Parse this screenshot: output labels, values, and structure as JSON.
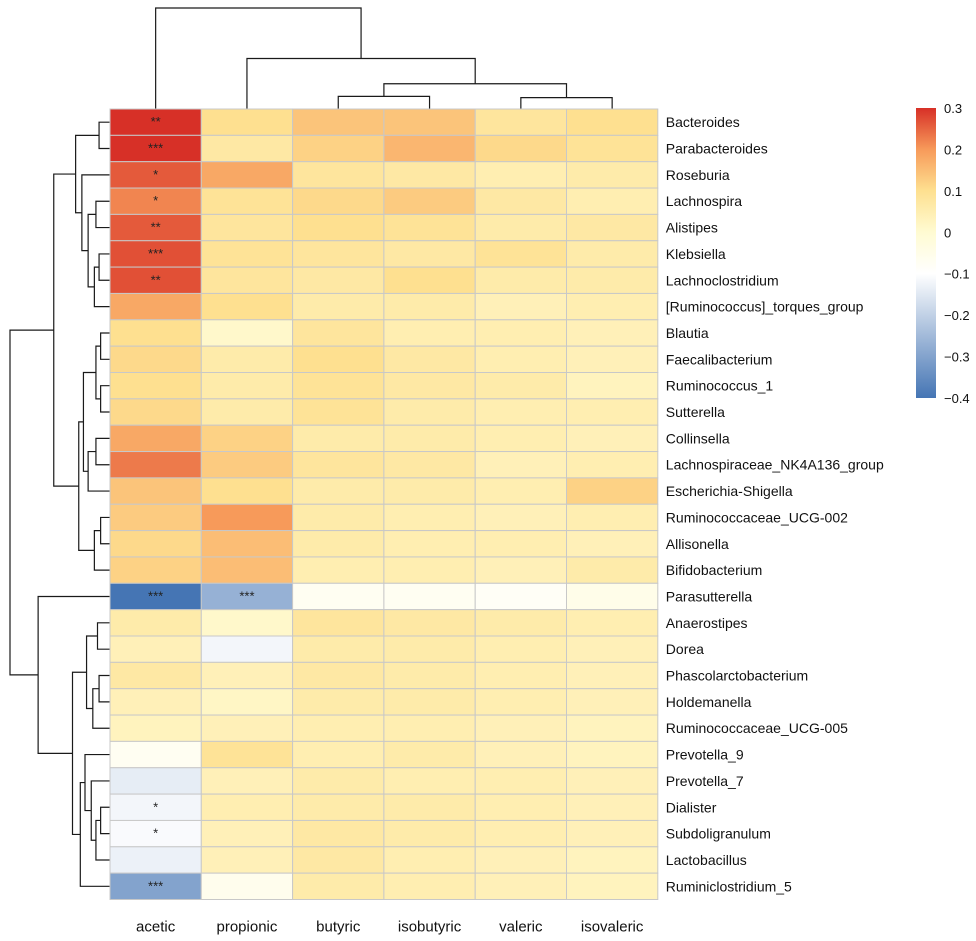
{
  "chart_data": {
    "type": "heatmap",
    "title": "",
    "columns": [
      "acetic",
      "propionic",
      "butyric",
      "isobutyric",
      "valeric",
      "isovaleric"
    ],
    "rows": [
      "Bacteroides",
      "Parabacteroides",
      "Roseburia",
      "Lachnospira",
      "Alistipes",
      "Klebsiella",
      "Lachnoclostridium",
      "[Ruminococcus]_torques_group",
      "Blautia",
      "Faecalibacterium",
      "Ruminococcus_1",
      "Sutterella",
      "Collinsella",
      "Lachnospiraceae_NK4A136_group",
      "Escherichia-Shigella",
      "Ruminococcaceae_UCG-002",
      "Allisonella",
      "Bifidobacterium",
      "Parasutterella",
      "Anaerostipes",
      "Dorea",
      "Phascolarctobacterium",
      "Holdemanella",
      "Ruminococcaceae_UCG-005",
      "Prevotella_9",
      "Prevotella_7",
      "Dialister",
      "Subdoligranulum",
      "Lactobacillus",
      "Ruminiclostridium_5"
    ],
    "values": [
      [
        0.3,
        0.1,
        0.14,
        0.14,
        0.08,
        0.1
      ],
      [
        0.32,
        0.07,
        0.12,
        0.16,
        0.11,
        0.09
      ],
      [
        0.26,
        0.18,
        0.08,
        0.07,
        0.05,
        0.06
      ],
      [
        0.22,
        0.09,
        0.11,
        0.13,
        0.07,
        0.05
      ],
      [
        0.26,
        0.08,
        0.1,
        0.09,
        0.06,
        0.07
      ],
      [
        0.27,
        0.09,
        0.08,
        0.07,
        0.09,
        0.06
      ],
      [
        0.27,
        0.08,
        0.07,
        0.1,
        0.06,
        0.06
      ],
      [
        0.18,
        0.1,
        0.06,
        0.06,
        0.04,
        0.05
      ],
      [
        0.1,
        0.01,
        0.08,
        0.05,
        0.05,
        0.04
      ],
      [
        0.11,
        0.06,
        0.1,
        0.07,
        0.05,
        0.04
      ],
      [
        0.1,
        0.06,
        0.09,
        0.07,
        0.06,
        0.03
      ],
      [
        0.11,
        0.06,
        0.09,
        0.06,
        0.05,
        0.05
      ],
      [
        0.18,
        0.12,
        0.06,
        0.06,
        0.05,
        0.04
      ],
      [
        0.23,
        0.13,
        0.08,
        0.07,
        0.04,
        0.05
      ],
      [
        0.14,
        0.1,
        0.06,
        0.06,
        0.05,
        0.12
      ],
      [
        0.13,
        0.2,
        0.06,
        0.05,
        0.04,
        0.05
      ],
      [
        0.11,
        0.15,
        0.06,
        0.05,
        0.05,
        0.04
      ],
      [
        0.12,
        0.15,
        0.05,
        0.05,
        0.04,
        0.06
      ],
      [
        -0.4,
        -0.27,
        -0.07,
        -0.07,
        -0.08,
        -0.05
      ],
      [
        0.06,
        0.01,
        0.08,
        0.07,
        0.06,
        0.05
      ],
      [
        0.04,
        -0.12,
        0.06,
        0.06,
        0.05,
        0.04
      ],
      [
        0.07,
        0.04,
        0.07,
        0.06,
        0.05,
        0.04
      ],
      [
        0.04,
        0.02,
        0.06,
        0.06,
        0.05,
        0.04
      ],
      [
        0.03,
        0.04,
        0.05,
        0.05,
        0.04,
        0.03
      ],
      [
        -0.07,
        0.09,
        0.05,
        0.06,
        0.04,
        0.03
      ],
      [
        -0.14,
        0.04,
        0.06,
        0.05,
        0.05,
        0.04
      ],
      [
        -0.12,
        0.05,
        0.06,
        0.06,
        0.05,
        0.04
      ],
      [
        -0.11,
        0.04,
        0.07,
        0.06,
        0.05,
        0.04
      ],
      [
        -0.13,
        0.04,
        0.07,
        0.05,
        0.04,
        0.03
      ],
      [
        -0.3,
        -0.06,
        0.06,
        0.05,
        0.04,
        0.03
      ]
    ],
    "significance": [
      [
        "**",
        "",
        "",
        "",
        "",
        ""
      ],
      [
        "***",
        "",
        "",
        "",
        "",
        ""
      ],
      [
        "*",
        "",
        "",
        "",
        "",
        ""
      ],
      [
        "*",
        "",
        "",
        "",
        "",
        ""
      ],
      [
        "**",
        "",
        "",
        "",
        "",
        ""
      ],
      [
        "***",
        "",
        "",
        "",
        "",
        ""
      ],
      [
        "**",
        "",
        "",
        "",
        "",
        ""
      ],
      [
        "",
        "",
        "",
        "",
        "",
        ""
      ],
      [
        "",
        "",
        "",
        "",
        "",
        ""
      ],
      [
        "",
        "",
        "",
        "",
        "",
        ""
      ],
      [
        "",
        "",
        "",
        "",
        "",
        ""
      ],
      [
        "",
        "",
        "",
        "",
        "",
        ""
      ],
      [
        "",
        "",
        "",
        "",
        "",
        ""
      ],
      [
        "",
        "",
        "",
        "",
        "",
        ""
      ],
      [
        "",
        "",
        "",
        "",
        "",
        ""
      ],
      [
        "",
        "",
        "",
        "",
        "",
        ""
      ],
      [
        "",
        "",
        "",
        "",
        "",
        ""
      ],
      [
        "",
        "",
        "",
        "",
        "",
        ""
      ],
      [
        "***",
        "***",
        "",
        "",
        "",
        ""
      ],
      [
        "",
        "",
        "",
        "",
        "",
        ""
      ],
      [
        "",
        "",
        "",
        "",
        "",
        ""
      ],
      [
        "",
        "",
        "",
        "",
        "",
        ""
      ],
      [
        "",
        "",
        "",
        "",
        "",
        ""
      ],
      [
        "",
        "",
        "",
        "",
        "",
        ""
      ],
      [
        "",
        "",
        "",
        "",
        "",
        ""
      ],
      [
        "",
        "",
        "",
        "",
        "",
        ""
      ],
      [
        "*",
        "",
        "",
        "",
        "",
        ""
      ],
      [
        "*",
        "",
        "",
        "",
        "",
        ""
      ],
      [
        "",
        "",
        "",
        "",
        "",
        ""
      ],
      [
        "***",
        "",
        "",
        "",
        "",
        ""
      ]
    ],
    "color_scale": {
      "range": [
        -0.4,
        0.3
      ],
      "stops": [
        {
          "value": -0.4,
          "color": "#4575b4"
        },
        {
          "value": -0.1,
          "color": "#ffffff"
        },
        {
          "value": 0.0,
          "color": "#fffbd2"
        },
        {
          "value": 0.1,
          "color": "#fee090"
        },
        {
          "value": 0.2,
          "color": "#f79a5a"
        },
        {
          "value": 0.3,
          "color": "#d73027"
        }
      ],
      "tick_labels": [
        "0.3",
        "0.2",
        "0.1",
        "0",
        "−0.1",
        "−0.2",
        "−0.3",
        "−0.4"
      ],
      "tick_values": [
        0.3,
        0.2,
        0.1,
        0,
        -0.1,
        -0.2,
        -0.3,
        -0.4
      ]
    },
    "column_dendrogram": [
      {
        "id": 6,
        "left": 2,
        "right": 3,
        "height": 0.5
      },
      {
        "id": 7,
        "left": 4,
        "right": 5,
        "height": 0.45
      },
      {
        "id": 8,
        "left": 6,
        "right": 7,
        "height": 1.0
      },
      {
        "id": 9,
        "left": 1,
        "right": 8,
        "height": 2.0
      },
      {
        "id": 10,
        "left": 0,
        "right": 9,
        "height": 4.0
      }
    ],
    "row_dendrogram": [
      {
        "id": 30,
        "left": 0,
        "right": 1,
        "height": 0.35
      },
      {
        "id": 31,
        "left": 3,
        "right": 4,
        "height": 0.45
      },
      {
        "id": 32,
        "left": 5,
        "right": 6,
        "height": 0.35
      },
      {
        "id": 33,
        "left": 32,
        "right": 7,
        "height": 0.5
      },
      {
        "id": 34,
        "left": 31,
        "right": 33,
        "height": 0.7
      },
      {
        "id": 35,
        "left": 2,
        "right": 34,
        "height": 0.9
      },
      {
        "id": 36,
        "left": 30,
        "right": 35,
        "height": 1.1
      },
      {
        "id": 37,
        "left": 8,
        "right": 9,
        "height": 0.3
      },
      {
        "id": 38,
        "left": 10,
        "right": 11,
        "height": 0.3
      },
      {
        "id": 39,
        "left": 37,
        "right": 38,
        "height": 0.45
      },
      {
        "id": 40,
        "left": 12,
        "right": 13,
        "height": 0.45
      },
      {
        "id": 41,
        "left": 40,
        "right": 14,
        "height": 0.7
      },
      {
        "id": 42,
        "left": 39,
        "right": 41,
        "height": 0.85
      },
      {
        "id": 43,
        "left": 15,
        "right": 16,
        "height": 0.3
      },
      {
        "id": 44,
        "left": 43,
        "right": 17,
        "height": 0.5
      },
      {
        "id": 45,
        "left": 42,
        "right": 44,
        "height": 1.0
      },
      {
        "id": 46,
        "left": 36,
        "right": 45,
        "height": 1.8
      },
      {
        "id": 47,
        "left": 19,
        "right": 20,
        "height": 0.4
      },
      {
        "id": 48,
        "left": 21,
        "right": 22,
        "height": 0.35
      },
      {
        "id": 49,
        "left": 48,
        "right": 23,
        "height": 0.55
      },
      {
        "id": 50,
        "left": 47,
        "right": 49,
        "height": 0.75
      },
      {
        "id": 51,
        "left": 26,
        "right": 27,
        "height": 0.3
      },
      {
        "id": 52,
        "left": 51,
        "right": 28,
        "height": 0.45
      },
      {
        "id": 53,
        "left": 25,
        "right": 52,
        "height": 0.6
      },
      {
        "id": 54,
        "left": 24,
        "right": 53,
        "height": 0.8
      },
      {
        "id": 55,
        "left": 54,
        "right": 29,
        "height": 0.95
      },
      {
        "id": 56,
        "left": 50,
        "right": 55,
        "height": 1.2
      },
      {
        "id": 57,
        "left": 18,
        "right": 56,
        "height": 2.3
      },
      {
        "id": 58,
        "left": 46,
        "right": 57,
        "height": 3.2
      }
    ]
  }
}
